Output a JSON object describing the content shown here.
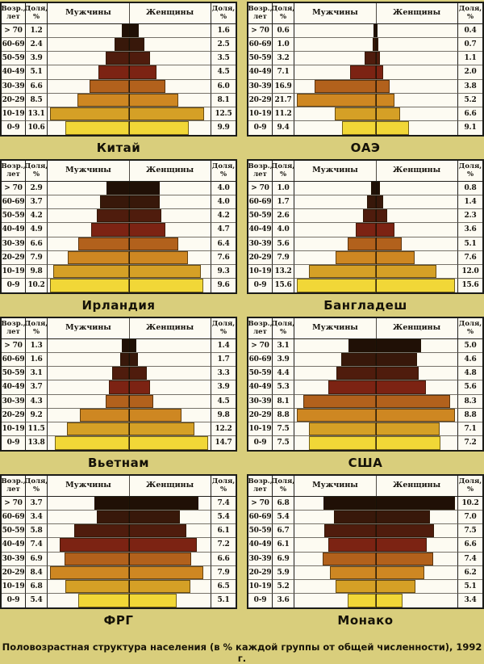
{
  "caption": "Половозрастная структура населения (в % каждой группы от общей численности), 1992 г.",
  "table_headers": {
    "age": "Возр., лет",
    "share_left": "Доля, %",
    "men": "Мужчины",
    "women": "Женщины",
    "share_right": "Доля, %"
  },
  "age_groups": [
    "> 70",
    "60-69",
    "50-59",
    "40-49",
    "30-39",
    "20-29",
    "10-19",
    "0-9"
  ],
  "row_colors": [
    "#201006",
    "#38180a",
    "#4f1c0d",
    "#7c2313",
    "#b2611c",
    "#ce8722",
    "#d5a026",
    "#f1d737"
  ],
  "layout_colors": {
    "page_background": "#d9ce7c",
    "table_background": "#fdfbf2",
    "border": "#1c1c18"
  },
  "chart_data": [
    {
      "type": "bar",
      "subtype": "population-pyramid",
      "title": "Китай",
      "unit": "%",
      "categories": [
        "> 70",
        "60-69",
        "50-59",
        "40-49",
        "30-39",
        "20-29",
        "10-19",
        "0-9"
      ],
      "series": [
        {
          "name": "Мужчины",
          "values": [
            1.2,
            2.4,
            3.9,
            5.1,
            6.6,
            8.5,
            13.1,
            10.6
          ]
        },
        {
          "name": "Женщины",
          "values": [
            1.6,
            2.5,
            3.5,
            4.5,
            6.0,
            8.1,
            12.5,
            9.9
          ]
        }
      ]
    },
    {
      "type": "bar",
      "subtype": "population-pyramid",
      "title": "ОАЭ",
      "unit": "%",
      "categories": [
        "> 70",
        "60-69",
        "50-59",
        "40-49",
        "30-39",
        "20-29",
        "10-19",
        "0-9"
      ],
      "series": [
        {
          "name": "Мужчины",
          "values": [
            0.6,
            1.0,
            3.2,
            7.1,
            16.9,
            21.7,
            11.2,
            9.4
          ]
        },
        {
          "name": "Женщины",
          "values": [
            0.4,
            0.7,
            1.1,
            2.0,
            3.8,
            5.2,
            6.6,
            9.1
          ]
        }
      ]
    },
    {
      "type": "bar",
      "subtype": "population-pyramid",
      "title": "Ирландия",
      "unit": "%",
      "categories": [
        "> 70",
        "60-69",
        "50-59",
        "40-49",
        "30-39",
        "20-29",
        "10-19",
        "0-9"
      ],
      "series": [
        {
          "name": "Мужчины",
          "values": [
            2.9,
            3.7,
            4.2,
            4.9,
            6.6,
            7.9,
            9.8,
            10.2
          ]
        },
        {
          "name": "Женщины",
          "values": [
            4.0,
            4.0,
            4.2,
            4.7,
            6.4,
            7.6,
            9.3,
            9.6
          ]
        }
      ]
    },
    {
      "type": "bar",
      "subtype": "population-pyramid",
      "title": "Бангладеш",
      "unit": "%",
      "categories": [
        "> 70",
        "60-69",
        "50-59",
        "40-49",
        "30-39",
        "20-29",
        "10-19",
        "0-9"
      ],
      "series": [
        {
          "name": "Мужчины",
          "values": [
            1.0,
            1.7,
            2.6,
            4.0,
            5.6,
            7.9,
            13.2,
            15.6
          ]
        },
        {
          "name": "Женщины",
          "values": [
            0.8,
            1.4,
            2.3,
            3.6,
            5.1,
            7.6,
            12.0,
            15.6
          ]
        }
      ]
    },
    {
      "type": "bar",
      "subtype": "population-pyramid",
      "title": "Вьетнам",
      "unit": "%",
      "categories": [
        "> 70",
        "60-69",
        "50-59",
        "40-49",
        "30-39",
        "20-29",
        "10-19",
        "0-9"
      ],
      "series": [
        {
          "name": "Мужчины",
          "values": [
            1.3,
            1.6,
            3.1,
            3.7,
            4.3,
            9.2,
            11.5,
            13.8
          ]
        },
        {
          "name": "Женщины",
          "values": [
            1.4,
            1.7,
            3.3,
            3.9,
            4.5,
            9.8,
            12.2,
            14.7
          ]
        }
      ]
    },
    {
      "type": "bar",
      "subtype": "population-pyramid",
      "title": "США",
      "unit": "%",
      "categories": [
        "> 70",
        "60-69",
        "50-59",
        "40-49",
        "30-39",
        "20-29",
        "10-19",
        "0-9"
      ],
      "series": [
        {
          "name": "Мужчины",
          "values": [
            3.1,
            3.9,
            4.4,
            5.3,
            8.1,
            8.8,
            7.5,
            7.5
          ]
        },
        {
          "name": "Женщины",
          "values": [
            5.0,
            4.6,
            4.8,
            5.6,
            8.3,
            8.8,
            7.1,
            7.2
          ]
        }
      ]
    },
    {
      "type": "bar",
      "subtype": "population-pyramid",
      "title": "ФРГ",
      "unit": "%",
      "categories": [
        "> 70",
        "60-69",
        "50-59",
        "40-49",
        "30-39",
        "20-29",
        "10-19",
        "0-9"
      ],
      "series": [
        {
          "name": "Мужчины",
          "values": [
            3.7,
            3.4,
            5.8,
            7.4,
            6.9,
            8.4,
            6.8,
            5.4
          ]
        },
        {
          "name": "Женщины",
          "values": [
            7.4,
            5.4,
            6.1,
            7.2,
            6.6,
            7.9,
            6.5,
            5.1
          ]
        }
      ]
    },
    {
      "type": "bar",
      "subtype": "population-pyramid",
      "title": "Монако",
      "unit": "%",
      "categories": [
        "> 70",
        "60-69",
        "50-59",
        "40-49",
        "30-39",
        "20-29",
        "10-19",
        "0-9"
      ],
      "series": [
        {
          "name": "Мужчины",
          "values": [
            6.8,
            5.4,
            6.7,
            6.1,
            6.9,
            5.9,
            5.2,
            3.6
          ]
        },
        {
          "name": "Женщины",
          "values": [
            10.2,
            7.0,
            7.5,
            6.6,
            7.4,
            6.2,
            5.1,
            3.4
          ]
        }
      ]
    }
  ]
}
